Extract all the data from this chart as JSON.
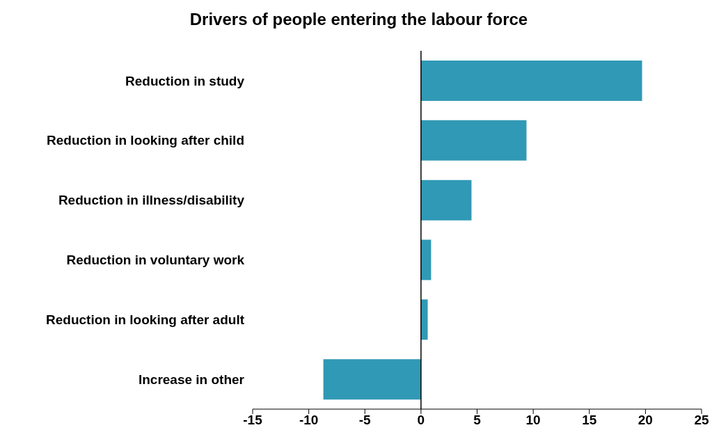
{
  "chart_data": {
    "type": "bar",
    "orientation": "horizontal",
    "title": "Drivers of people entering the labour force",
    "categories": [
      "Reduction in study",
      "Reduction in looking after child",
      "Reduction in illness/disability",
      "Reduction in voluntary work",
      "Reduction in looking after adult",
      "Increase in other"
    ],
    "values": [
      19.7,
      9.4,
      4.5,
      0.9,
      0.6,
      -8.7
    ],
    "color": "#3099b5",
    "xlim": [
      -15,
      25
    ],
    "xticks": [
      -15,
      -10,
      -5,
      0,
      5,
      10,
      15,
      20,
      25
    ]
  }
}
